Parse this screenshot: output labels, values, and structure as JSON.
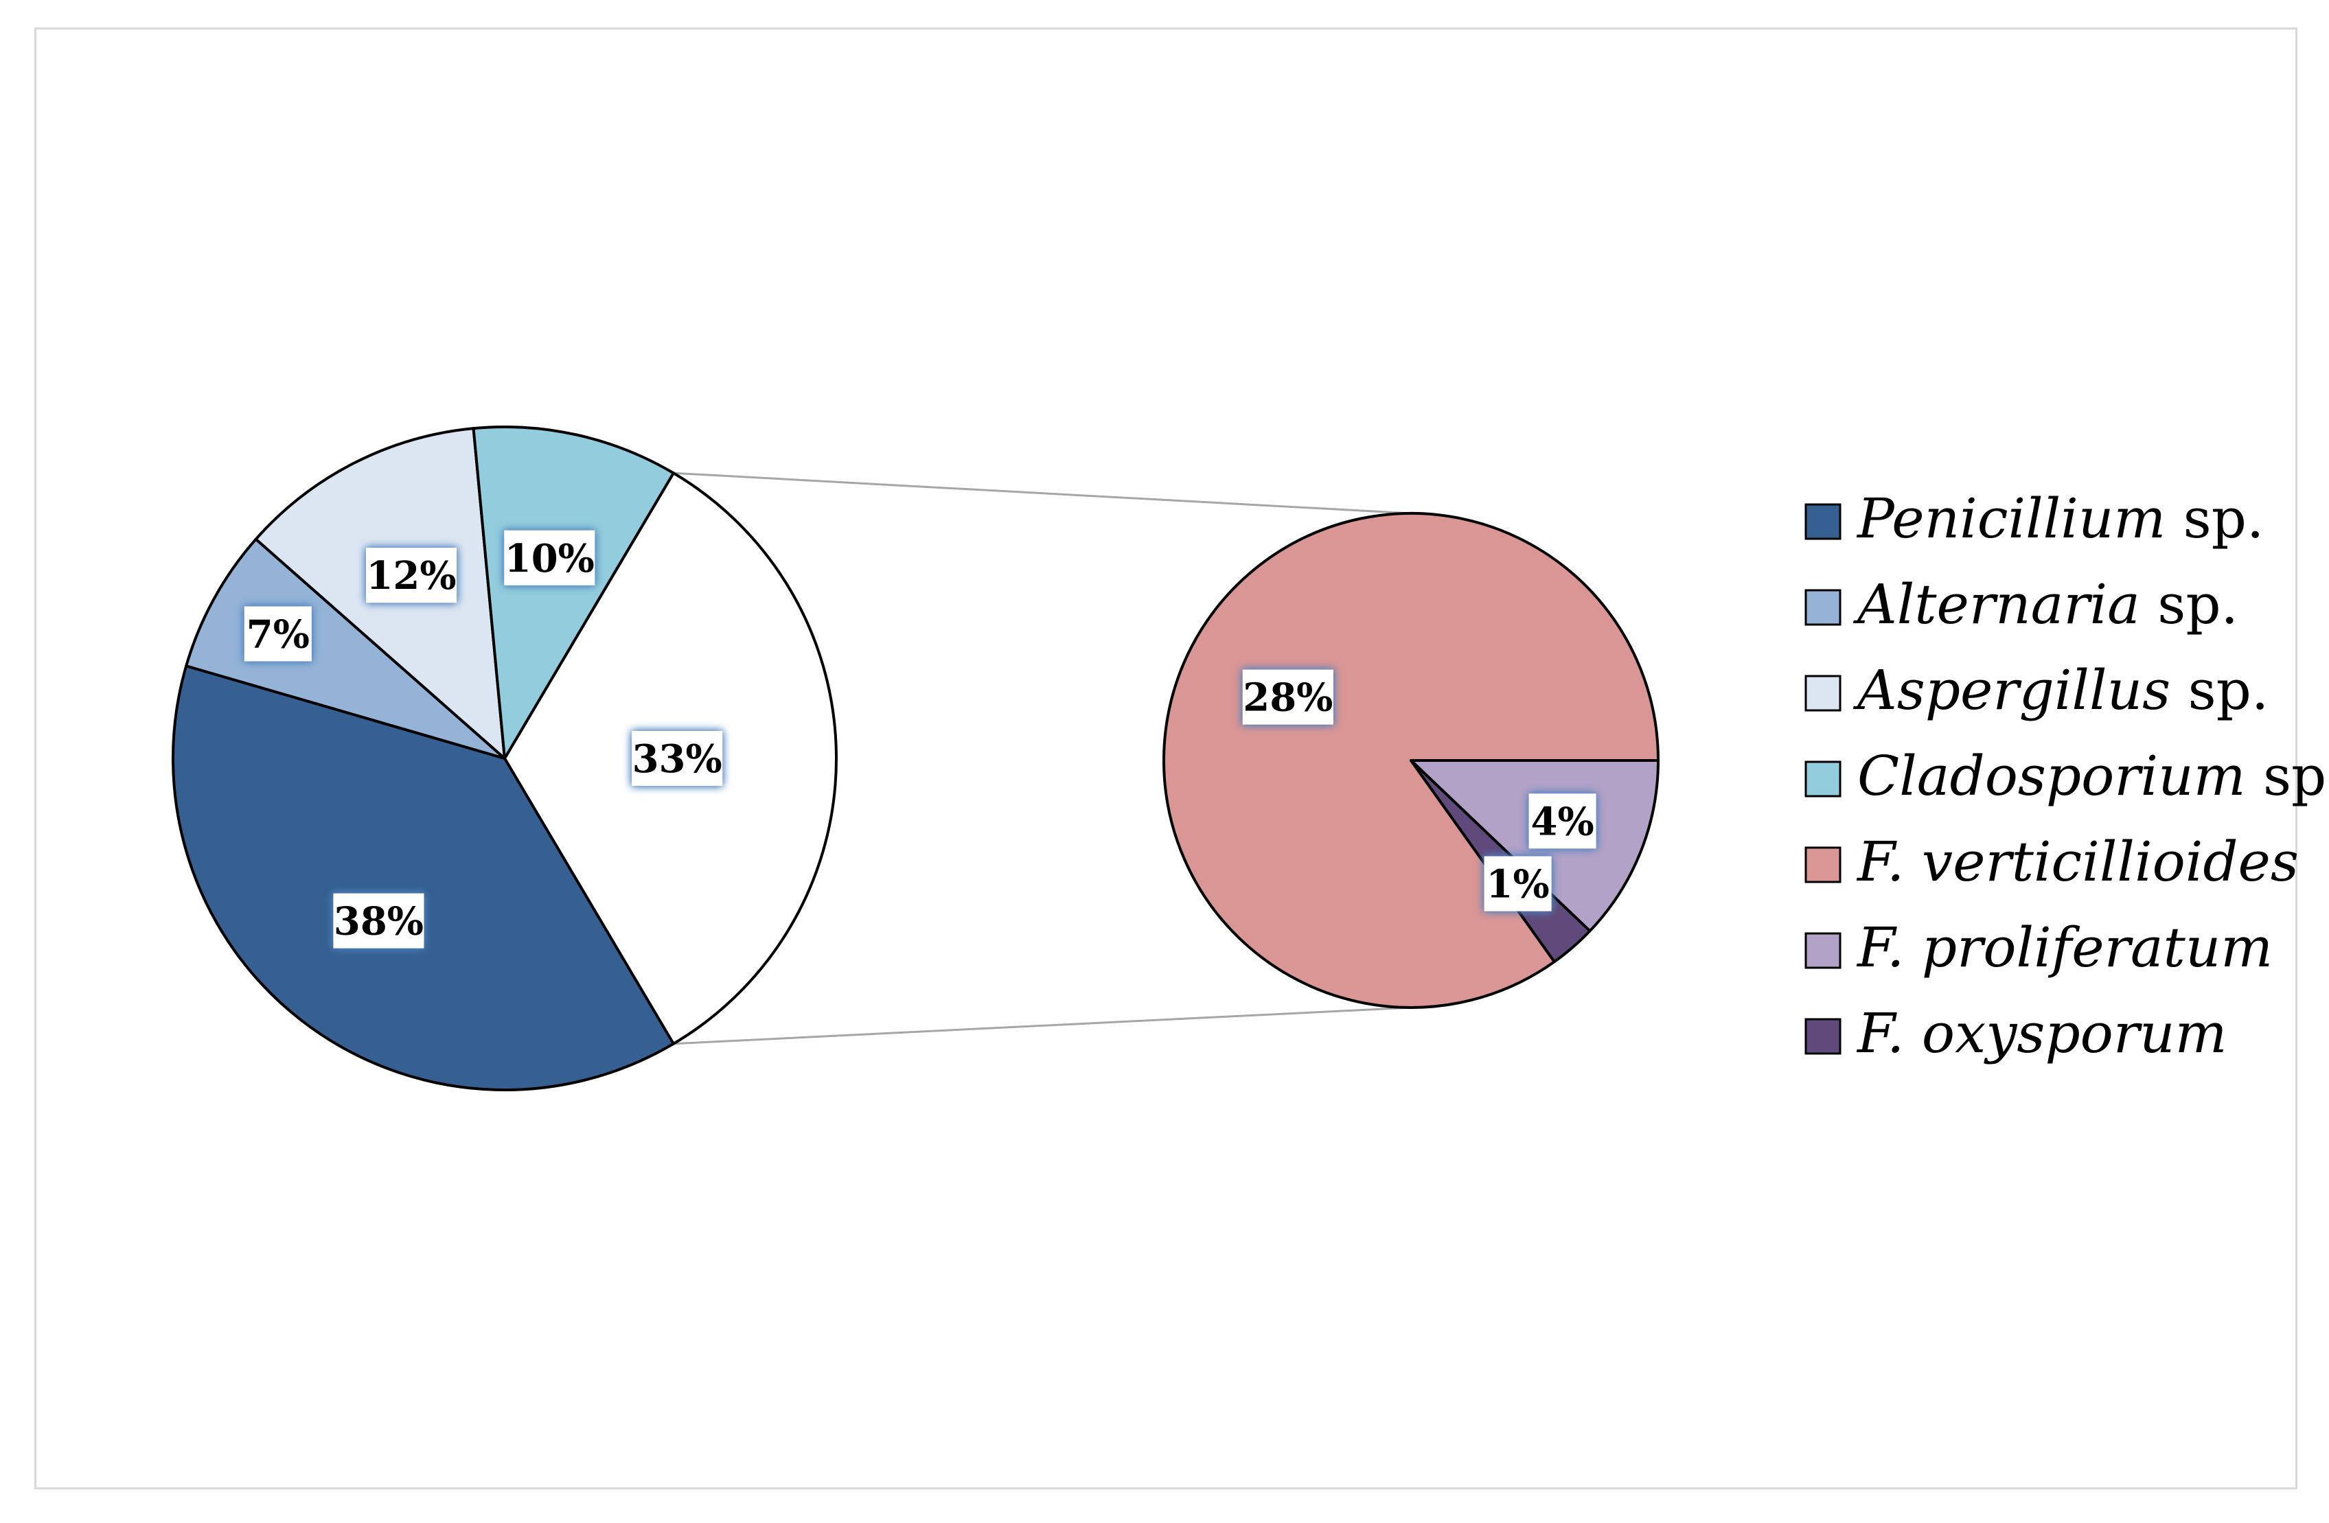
{
  "chart_data": {
    "type": "pie",
    "subtype": "pie-of-pie",
    "legend_position": "right",
    "slices": [
      {
        "name": "Penicillium",
        "suffix": " sp.",
        "value": 38,
        "label": "38%",
        "color": "#366092",
        "pie": "main"
      },
      {
        "name": "Alternaria",
        "suffix": " sp.",
        "value": 7,
        "label": "7%",
        "color": "#95b3d7",
        "pie": "main"
      },
      {
        "name": "Aspergillus",
        "suffix": " sp.",
        "value": 12,
        "label": "12%",
        "color": "#dce6f2",
        "pie": "main"
      },
      {
        "name": "Cladosporium",
        "suffix": " sp.",
        "value": 10,
        "label": "10%",
        "color": "#93cddd",
        "pie": "main"
      },
      {
        "name": "F. verticillioides",
        "suffix": "",
        "value": 28,
        "label": "28%",
        "color": "#d99694",
        "pie": "secondary"
      },
      {
        "name": "F. proliferatum",
        "suffix": "",
        "value": 4,
        "label": "4%",
        "color": "#b3a2c7",
        "pie": "secondary"
      },
      {
        "name": "F. oxysporum",
        "suffix": "",
        "value": 1,
        "label": "1%",
        "color": "#604a7b",
        "pie": "secondary"
      }
    ],
    "other_slice": {
      "value": 33,
      "label": "33%",
      "color": "#ffffff"
    }
  }
}
